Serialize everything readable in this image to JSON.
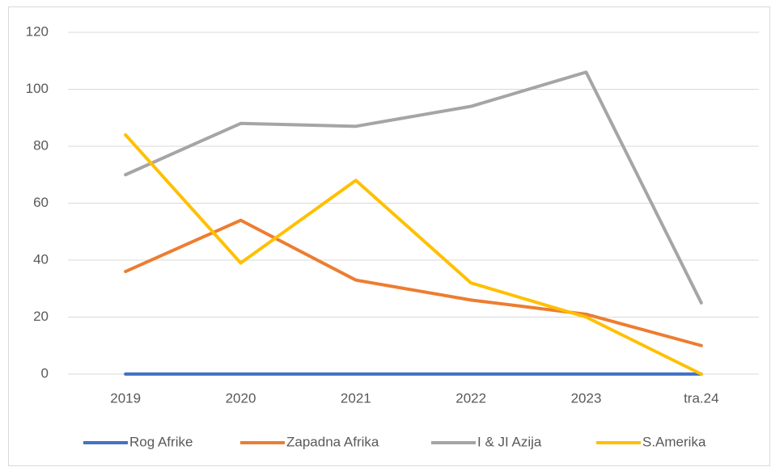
{
  "chart_data": {
    "type": "line",
    "categories": [
      "2019",
      "2020",
      "2021",
      "2022",
      "2023",
      "tra.24"
    ],
    "series": [
      {
        "name": "Rog Afrike",
        "color": "#4472c4",
        "values": [
          0,
          0,
          0,
          0,
          0,
          0
        ]
      },
      {
        "name": "Zapadna Afrika",
        "color": "#ed7d31",
        "values": [
          36,
          54,
          33,
          26,
          21,
          10
        ]
      },
      {
        "name": "I & JI Azija",
        "color": "#a5a5a5",
        "values": [
          70,
          88,
          87,
          94,
          106,
          25
        ]
      },
      {
        "name": "S.Amerika",
        "color": "#ffc000",
        "values": [
          84,
          39,
          68,
          32,
          20,
          0
        ]
      }
    ],
    "ylim": [
      0,
      120
    ],
    "yticks": [
      0,
      20,
      40,
      60,
      80,
      100,
      120
    ],
    "grid": true,
    "legend": "bottom"
  }
}
